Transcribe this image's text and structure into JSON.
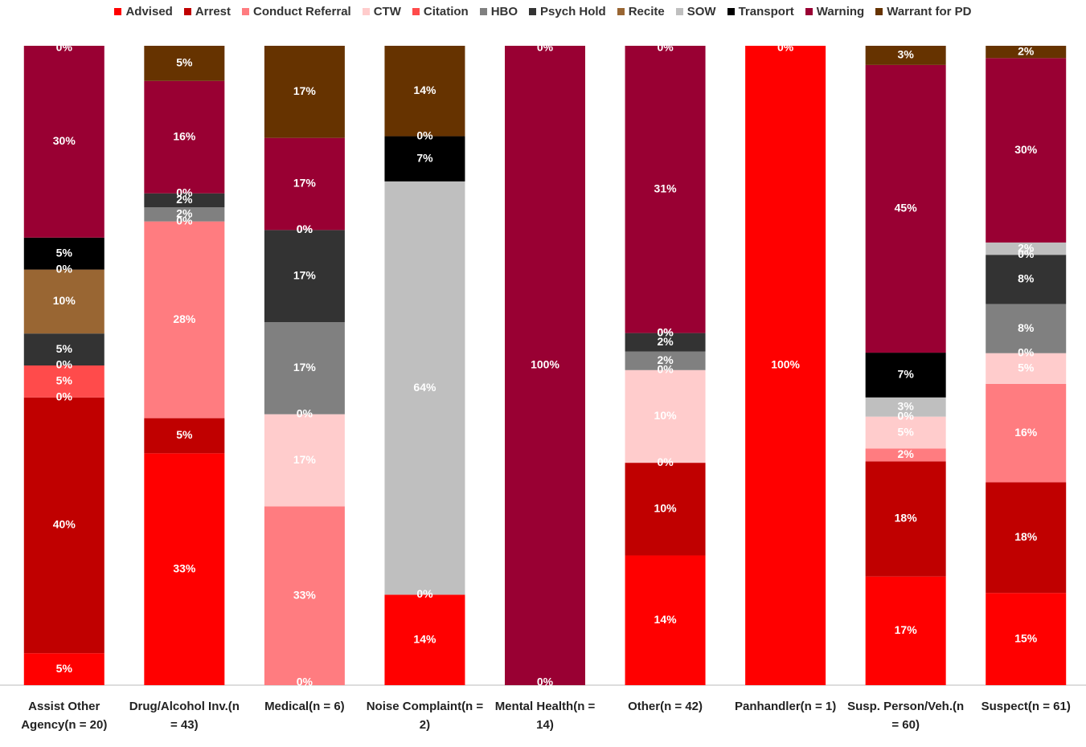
{
  "chart_data": {
    "type": "bar",
    "stacked": "percent",
    "categories": [
      "Assist Other Agency(n = 20)",
      "Drug/Alcohol Inv.(n = 43)",
      "Medical(n = 6)",
      "Noise Complaint(n = 2)",
      "Mental Health(n = 14)",
      "Other(n = 42)",
      "Panhandler(n = 1)",
      "Susp. Person/Veh.(n = 60)",
      "Suspect(n = 61)"
    ],
    "series": [
      {
        "name": "Advised",
        "color": "#ff0000",
        "values": [
          5,
          33,
          0,
          14,
          0,
          14,
          100,
          17,
          15
        ],
        "value_labels": [
          "5%",
          "33%",
          "0%",
          "14%",
          "0%",
          "14%",
          "100%",
          "17%",
          "15%"
        ]
      },
      {
        "name": "Arrest",
        "color": "#c00000",
        "values": [
          40,
          5,
          null,
          0,
          null,
          10,
          null,
          18,
          18
        ],
        "value_labels": [
          "40%",
          "5%",
          null,
          "0%",
          null,
          "10%",
          null,
          "18%",
          "18%"
        ]
      },
      {
        "name": "Conduct Referral",
        "color": "#ff7c80",
        "values": [
          0,
          28,
          33,
          null,
          null,
          0,
          null,
          2,
          16
        ],
        "value_labels": [
          "0%",
          "28%",
          "33%",
          null,
          null,
          "0%",
          null,
          "2%",
          "16%"
        ]
      },
      {
        "name": "CTW",
        "color": "#ffcccc",
        "values": [
          null,
          0,
          17,
          null,
          null,
          10,
          null,
          5,
          5
        ],
        "value_labels": [
          null,
          "0%",
          "17%",
          null,
          null,
          "10%",
          null,
          "5%",
          "5%"
        ]
      },
      {
        "name": "Citation",
        "color": "#ff4b4b",
        "values": [
          5,
          null,
          0,
          null,
          null,
          0,
          null,
          0,
          0
        ],
        "value_labels": [
          "5%",
          null,
          "0%",
          null,
          null,
          "0%",
          null,
          "0%",
          "0%"
        ]
      },
      {
        "name": "HBO",
        "color": "#808080",
        "values": [
          0,
          2,
          17,
          null,
          null,
          2,
          null,
          null,
          8
        ],
        "value_labels": [
          "0%",
          "2%",
          "17%",
          null,
          null,
          "2%",
          null,
          null,
          "8%"
        ]
      },
      {
        "name": "Psych Hold",
        "color": "#333333",
        "values": [
          5,
          2,
          17,
          null,
          null,
          2,
          null,
          null,
          8
        ],
        "value_labels": [
          "5%",
          "2%",
          "17%",
          null,
          null,
          "2%",
          null,
          null,
          "8%"
        ]
      },
      {
        "name": "Recite",
        "color": "#996633",
        "values": [
          10,
          0,
          0,
          null,
          null,
          0,
          null,
          null,
          0
        ],
        "value_labels": [
          "10%",
          "0%",
          "0%",
          null,
          null,
          "0%",
          null,
          null,
          "0%"
        ]
      },
      {
        "name": "SOW",
        "color": "#bfbfbf",
        "values": [
          0,
          null,
          null,
          64,
          null,
          0,
          null,
          3,
          2
        ],
        "value_labels": [
          "0%",
          null,
          null,
          "64%",
          null,
          "0%",
          null,
          "3%",
          "2%"
        ]
      },
      {
        "name": "Transport",
        "color": "#000000",
        "values": [
          5,
          null,
          0,
          7,
          null,
          null,
          null,
          7,
          null
        ],
        "value_labels": [
          "5%",
          null,
          "0%",
          "7%",
          null,
          null,
          null,
          "7%",
          null
        ]
      },
      {
        "name": "Warning",
        "color": "#990033",
        "values": [
          30,
          16,
          17,
          0,
          100,
          31,
          null,
          45,
          30
        ],
        "value_labels": [
          "30%",
          "16%",
          "17%",
          "0%",
          "100%",
          "31%",
          null,
          "45%",
          "30%"
        ]
      },
      {
        "name": "Warrant for PD",
        "color": "#663300",
        "values": [
          0,
          5,
          17,
          14,
          0,
          0,
          0,
          3,
          2
        ],
        "value_labels": [
          "0%",
          "5%",
          "17%",
          "14%",
          "0%",
          "0%",
          "0%",
          "3%",
          "2%"
        ]
      }
    ]
  }
}
